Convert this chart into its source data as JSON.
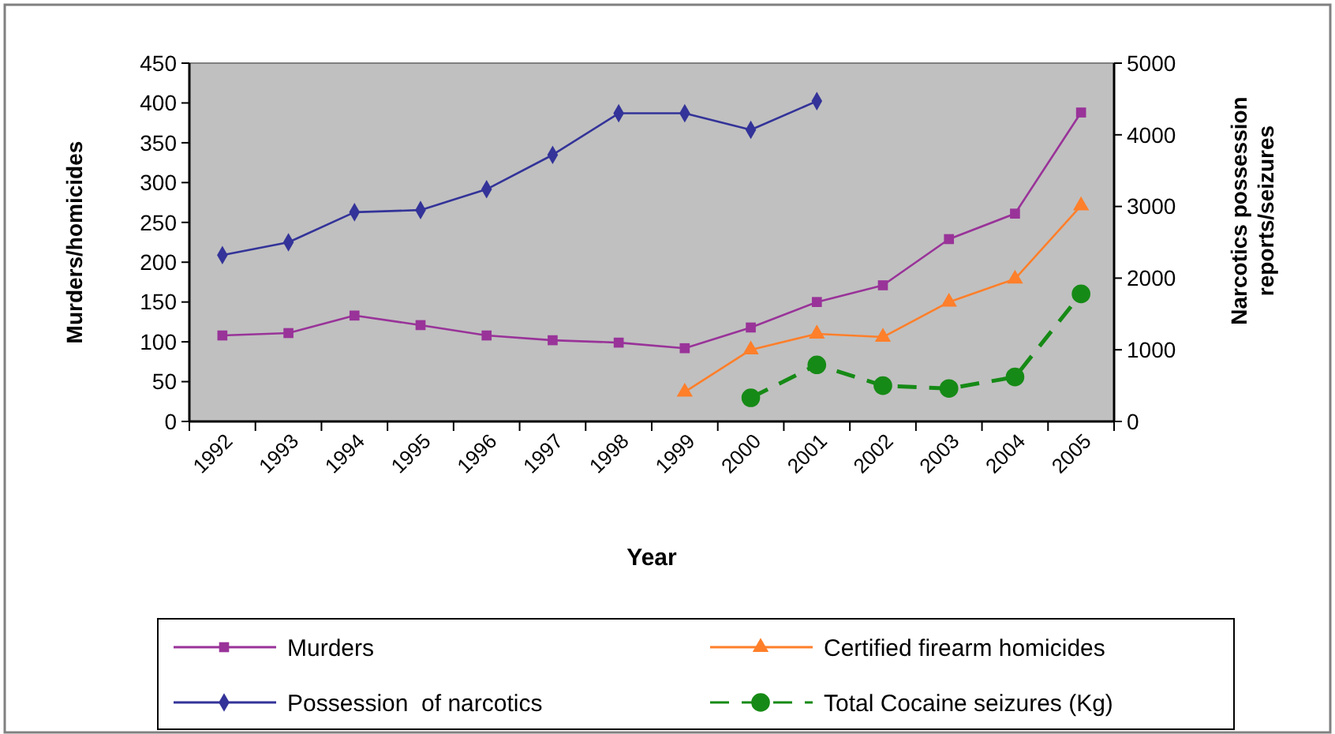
{
  "chart_data": {
    "type": "line",
    "categories": [
      "1992",
      "1993",
      "1994",
      "1995",
      "1996",
      "1997",
      "1998",
      "1999",
      "2000",
      "2001",
      "2002",
      "2003",
      "2004",
      "2005"
    ],
    "xlabel": "Year",
    "ylabel": "Murders/homicides",
    "y2label": "Narcotics possession reports/seizures",
    "ylim": [
      0,
      450
    ],
    "yticks": [
      0,
      50,
      100,
      150,
      200,
      250,
      300,
      350,
      400,
      450
    ],
    "y2lim": [
      0,
      5000
    ],
    "y2ticks": [
      0,
      1000,
      2000,
      3000,
      4000,
      5000
    ],
    "legend": "bottom",
    "grid": false,
    "series": [
      {
        "name": "Murders",
        "color": "#993399",
        "marker": "square",
        "line_style": "solid",
        "values": [
          108,
          111,
          133,
          121,
          108,
          102,
          99,
          92,
          118,
          150,
          171,
          229,
          261,
          388
        ]
      },
      {
        "name": "Possession  of narcotics",
        "color": "#333399",
        "marker": "diamond",
        "line_style": "solid",
        "axis": "y2",
        "values": [
          2320,
          2500,
          2920,
          2950,
          3240,
          3720,
          4300,
          4300,
          4070,
          4470,
          null,
          null,
          null,
          null
        ]
      },
      {
        "name": "Certified firearm homicides",
        "color": "#ff7f2a",
        "marker": "triangle",
        "line_style": "solid",
        "values": [
          null,
          null,
          null,
          null,
          null,
          null,
          null,
          37,
          90,
          110,
          106,
          150,
          179,
          271
        ]
      },
      {
        "name": "Total Cocaine seizures (Kg)",
        "color": "#168a16",
        "marker": "circle",
        "line_style": "dashed",
        "axis": "y2",
        "values": [
          null,
          null,
          null,
          null,
          null,
          null,
          null,
          null,
          330,
          790,
          500,
          460,
          620,
          1780
        ]
      }
    ]
  }
}
